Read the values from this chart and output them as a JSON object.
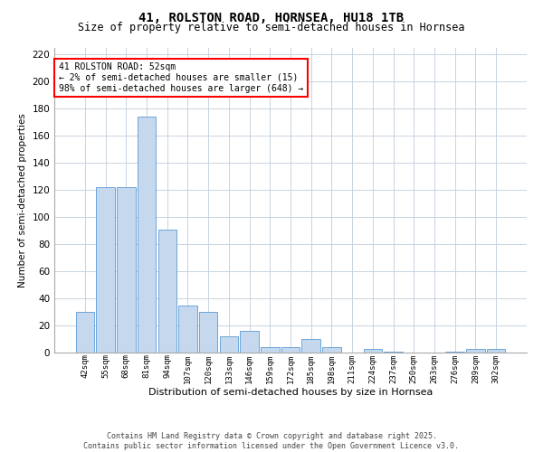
{
  "title1": "41, ROLSTON ROAD, HORNSEA, HU18 1TB",
  "title2": "Size of property relative to semi-detached houses in Hornsea",
  "xlabel": "Distribution of semi-detached houses by size in Hornsea",
  "ylabel": "Number of semi-detached properties",
  "bar_labels": [
    "42sqm",
    "55sqm",
    "68sqm",
    "81sqm",
    "94sqm",
    "107sqm",
    "120sqm",
    "133sqm",
    "146sqm",
    "159sqm",
    "172sqm",
    "185sqm",
    "198sqm",
    "211sqm",
    "224sqm",
    "237sqm",
    "250sqm",
    "263sqm",
    "276sqm",
    "289sqm",
    "302sqm"
  ],
  "bar_values": [
    30,
    122,
    122,
    174,
    91,
    35,
    30,
    12,
    16,
    4,
    4,
    10,
    4,
    0,
    3,
    1,
    0,
    0,
    1,
    3,
    3
  ],
  "bar_color": "#c5d8ed",
  "bar_edge_color": "#5b9bd5",
  "annotation_title": "41 ROLSTON ROAD: 52sqm",
  "annotation_line1": "← 2% of semi-detached houses are smaller (15)",
  "annotation_line2": "98% of semi-detached houses are larger (648) →",
  "footer_line1": "Contains HM Land Registry data © Crown copyright and database right 2025.",
  "footer_line2": "Contains public sector information licensed under the Open Government Licence v3.0.",
  "ylim": [
    0,
    225
  ],
  "yticks": [
    0,
    20,
    40,
    60,
    80,
    100,
    120,
    140,
    160,
    180,
    200,
    220
  ],
  "background_color": "#ffffff",
  "grid_color": "#c8d4e0",
  "title1_fontsize": 10,
  "title2_fontsize": 8.5,
  "xlabel_fontsize": 8,
  "ylabel_fontsize": 7.5,
  "footer_fontsize": 6,
  "ann_fontsize": 7
}
